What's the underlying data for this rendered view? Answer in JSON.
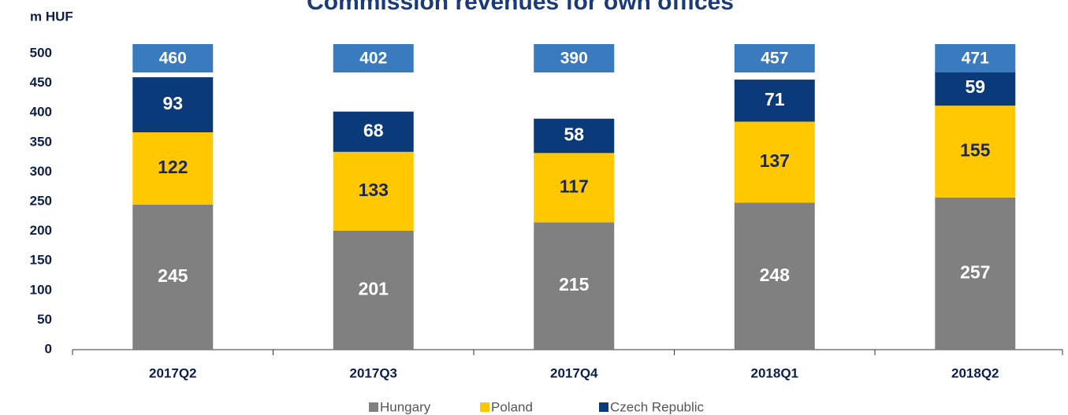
{
  "chart_data": {
    "type": "stacked_bar",
    "title": "Commission revenues for own offices",
    "y_label": "m HUF",
    "categories": [
      "2017Q2",
      "2017Q3",
      "2017Q4",
      "2018Q1",
      "2018Q2"
    ],
    "series": [
      {
        "name": "Hungary",
        "color": "#808080",
        "values": [
          245,
          201,
          215,
          248,
          257
        ]
      },
      {
        "name": "Poland",
        "color": "#ffc800",
        "values": [
          122,
          133,
          117,
          137,
          155
        ]
      },
      {
        "name": "Czech Republic",
        "color": "#0a3a7a",
        "values": [
          93,
          68,
          58,
          71,
          59
        ]
      }
    ],
    "totals": [
      460,
      402,
      390,
      457,
      471
    ],
    "total_color": "#3a7bbf",
    "ylim": [
      0,
      500
    ],
    "yticks": [
      0,
      50,
      100,
      150,
      200,
      250,
      300,
      350,
      400,
      450,
      500
    ],
    "legend": "bottom"
  }
}
